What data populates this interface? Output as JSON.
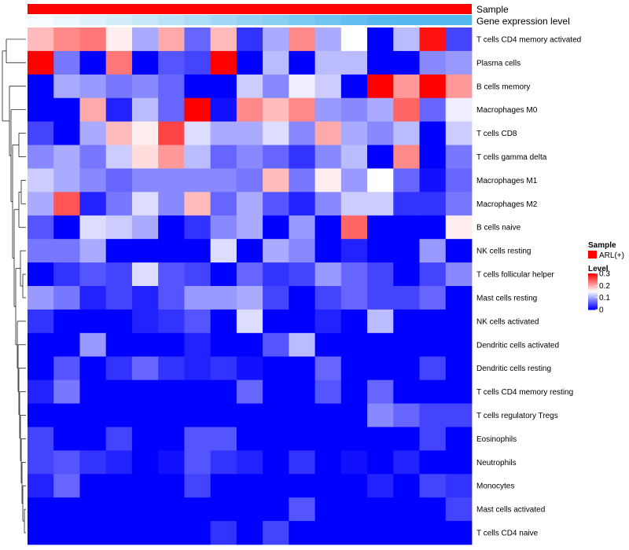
{
  "chart_data": {
    "type": "heatmap",
    "annotation_rows": [
      {
        "label": "Sample",
        "color": "#ff0000"
      },
      {
        "label": "Gene expression level",
        "color_from": "#ffffff",
        "color_to": "#53b8ee"
      }
    ],
    "legend_sample_title": "Sample",
    "legend_sample_entries": [
      {
        "label": "ARL(+)",
        "color": "#ff0000"
      }
    ],
    "legend_level_title": "Level",
    "legend_level_ticks": [
      {
        "label": "0.3",
        "value": 0.3
      },
      {
        "label": "0.2",
        "value": 0.2
      },
      {
        "label": "0.1",
        "value": 0.1
      },
      {
        "label": "0",
        "value": 0
      }
    ],
    "color_scale": {
      "min": 0,
      "mid": 0.15,
      "max": 0.3,
      "low": "#0000ff",
      "mid_color": "#ffffff",
      "high": "#ff0000"
    },
    "rows": [
      "T cells CD4 memory activated",
      "Plasma cells",
      "B cells memory",
      "Macrophages M0",
      "T cells CD8",
      "T cells gamma delta",
      "Macrophages M1",
      "Macrophages M2",
      "B cells naive",
      "NK cells resting",
      "T cells follicular helper",
      "Mast cells resting",
      "NK cells activated",
      "Dendritic cells activated",
      "Dendritic cells resting",
      "T cells CD4 memory resting",
      "T cells regulatory  Tregs",
      "Eosinophils",
      "Neutrophils",
      "Monocytes",
      "Mast cells activated",
      "T cells CD4 naive"
    ],
    "values": [
      [
        0.19,
        0.22,
        0.23,
        0.16,
        0.1,
        0.2,
        0.06,
        0.19,
        0.03,
        0.1,
        0.22,
        0.1,
        0.15,
        0.0,
        0.11,
        0.29,
        0.04
      ],
      [
        0.3,
        0.07,
        0.0,
        0.23,
        0.0,
        0.05,
        0.04,
        0.3,
        0.0,
        0.11,
        0.0,
        0.11,
        0.11,
        0.0,
        0.0,
        0.08,
        0.09
      ],
      [
        0.0,
        0.1,
        0.09,
        0.07,
        0.08,
        0.06,
        0.0,
        0.0,
        0.12,
        0.08,
        0.14,
        0.12,
        0.0,
        0.3,
        0.21,
        0.3,
        0.21
      ],
      [
        0.0,
        0.0,
        0.2,
        0.02,
        0.11,
        0.06,
        0.3,
        0.01,
        0.22,
        0.19,
        0.22,
        0.09,
        0.08,
        0.1,
        0.24,
        0.06,
        0.14
      ],
      [
        0.04,
        0.0,
        0.1,
        0.19,
        0.16,
        0.26,
        0.13,
        0.1,
        0.1,
        0.13,
        0.08,
        0.2,
        0.1,
        0.08,
        0.11,
        0.0,
        0.12
      ],
      [
        0.08,
        0.1,
        0.07,
        0.12,
        0.17,
        0.21,
        0.11,
        0.06,
        0.08,
        0.06,
        0.03,
        0.08,
        0.11,
        0.0,
        0.22,
        0.0,
        0.07
      ],
      [
        0.12,
        0.1,
        0.08,
        0.06,
        0.08,
        0.08,
        0.08,
        0.08,
        0.07,
        0.19,
        0.07,
        0.16,
        0.09,
        0.15,
        0.06,
        0.01,
        0.06
      ],
      [
        0.1,
        0.25,
        0.02,
        0.07,
        0.13,
        0.08,
        0.19,
        0.06,
        0.1,
        0.05,
        0.02,
        0.08,
        0.12,
        0.12,
        0.03,
        0.03,
        0.07
      ],
      [
        0.05,
        0.0,
        0.13,
        0.12,
        0.1,
        0.0,
        0.03,
        0.08,
        0.1,
        0.0,
        0.09,
        0.0,
        0.24,
        0.0,
        0.0,
        0.0,
        0.16
      ],
      [
        0.07,
        0.07,
        0.1,
        0.0,
        0.0,
        0.0,
        0.0,
        0.13,
        0.0,
        0.1,
        0.08,
        0.0,
        0.02,
        0.0,
        0.0,
        0.09,
        0.0
      ],
      [
        0.0,
        0.03,
        0.05,
        0.04,
        0.13,
        0.05,
        0.04,
        0.0,
        0.06,
        0.03,
        0.04,
        0.09,
        0.06,
        0.04,
        0.0,
        0.04,
        0.08
      ],
      [
        0.09,
        0.07,
        0.02,
        0.04,
        0.02,
        0.05,
        0.09,
        0.09,
        0.1,
        0.04,
        0.0,
        0.04,
        0.06,
        0.04,
        0.04,
        0.06,
        0.0
      ],
      [
        0.03,
        0.0,
        0.0,
        0.0,
        0.02,
        0.03,
        0.05,
        0.0,
        0.13,
        0.0,
        0.0,
        0.02,
        0.0,
        0.11,
        0.0,
        0.0,
        0.0
      ],
      [
        0.0,
        0.0,
        0.09,
        0.0,
        0.0,
        0.0,
        0.02,
        0.0,
        0.0,
        0.05,
        0.11,
        0.0,
        0.0,
        0.0,
        0.0,
        0.0,
        0.0
      ],
      [
        0.0,
        0.05,
        0.0,
        0.03,
        0.06,
        0.03,
        0.02,
        0.03,
        0.01,
        0.0,
        0.0,
        0.06,
        0.0,
        0.0,
        0.0,
        0.04,
        0.0
      ],
      [
        0.02,
        0.07,
        0.0,
        0.0,
        0.0,
        0.0,
        0.0,
        0.0,
        0.06,
        0.0,
        0.0,
        0.05,
        0.0,
        0.06,
        0.0,
        0.0,
        0.0
      ],
      [
        0.0,
        0.0,
        0.0,
        0.0,
        0.0,
        0.0,
        0.0,
        0.0,
        0.0,
        0.0,
        0.0,
        0.0,
        0.0,
        0.08,
        0.06,
        0.04,
        0.04
      ],
      [
        0.04,
        0.0,
        0.0,
        0.04,
        0.0,
        0.0,
        0.05,
        0.05,
        0.0,
        0.0,
        0.0,
        0.0,
        0.0,
        0.0,
        0.0,
        0.04,
        0.0
      ],
      [
        0.04,
        0.05,
        0.03,
        0.02,
        0.0,
        0.01,
        0.05,
        0.03,
        0.02,
        0.0,
        0.03,
        0.0,
        0.01,
        0.0,
        0.02,
        0.0,
        0.0
      ],
      [
        0.02,
        0.06,
        0.0,
        0.0,
        0.0,
        0.0,
        0.04,
        0.0,
        0.0,
        0.0,
        0.0,
        0.0,
        0.0,
        0.02,
        0.0,
        0.04,
        0.03
      ],
      [
        0.0,
        0.0,
        0.0,
        0.0,
        0.0,
        0.0,
        0.0,
        0.0,
        0.0,
        0.0,
        0.05,
        0.0,
        0.0,
        0.0,
        0.0,
        0.0,
        0.04
      ],
      [
        0.0,
        0.0,
        0.0,
        0.0,
        0.0,
        0.0,
        0.0,
        0.03,
        0.0,
        0.04,
        0.0,
        0.0,
        0.0,
        0.0,
        0.0,
        0.0,
        0.0
      ]
    ]
  }
}
